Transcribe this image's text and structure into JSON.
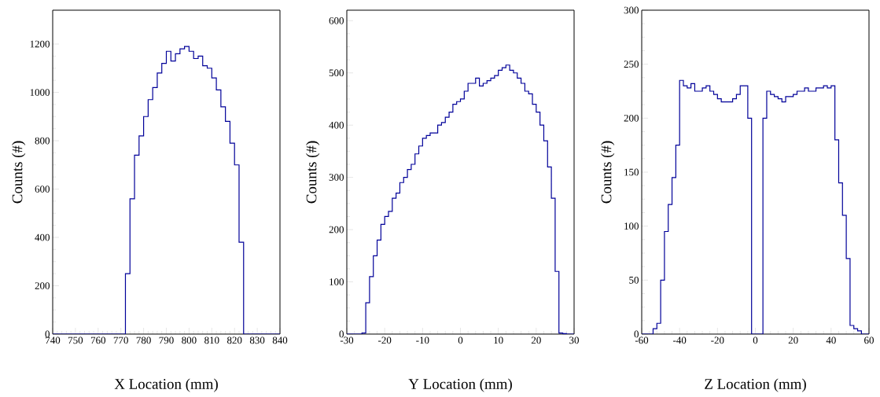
{
  "chart_data": [
    {
      "type": "histogram",
      "xlabel": "X Location (mm)",
      "ylabel": "Counts (#)",
      "color": "#000099",
      "bins": [
        740,
        742,
        744,
        746,
        748,
        750,
        752,
        754,
        756,
        758,
        760,
        762,
        764,
        766,
        768,
        770,
        772,
        774,
        776,
        778,
        780,
        782,
        784,
        786,
        788,
        790,
        792,
        794,
        796,
        798,
        800,
        802,
        804,
        806,
        808,
        810,
        812,
        814,
        816,
        818,
        820,
        822,
        824,
        826,
        828,
        830,
        832,
        834,
        836,
        838,
        840
      ],
      "values": [
        0,
        0,
        0,
        0,
        0,
        0,
        0,
        0,
        0,
        0,
        0,
        0,
        0,
        0,
        0,
        0,
        250,
        560,
        740,
        820,
        900,
        970,
        1020,
        1080,
        1120,
        1170,
        1130,
        1160,
        1180,
        1190,
        1170,
        1140,
        1150,
        1110,
        1100,
        1060,
        1010,
        940,
        880,
        790,
        700,
        380,
        0,
        0,
        0,
        0,
        0,
        0,
        0,
        0
      ],
      "xlim": [
        740,
        840
      ],
      "ylim": [
        0,
        1340
      ],
      "xticks": [
        740,
        750,
        760,
        770,
        780,
        790,
        800,
        810,
        820,
        830,
        840
      ],
      "yticks": [
        0,
        200,
        400,
        600,
        800,
        1000,
        1200
      ]
    },
    {
      "type": "histogram",
      "xlabel": "Y Location (mm)",
      "ylabel": "Counts (#)",
      "color": "#000099",
      "bins": [
        -30,
        -29,
        -28,
        -27,
        -26,
        -25,
        -24,
        -23,
        -22,
        -21,
        -20,
        -19,
        -18,
        -17,
        -16,
        -15,
        -14,
        -13,
        -12,
        -11,
        -10,
        -9,
        -8,
        -7,
        -6,
        -5,
        -4,
        -3,
        -2,
        -1,
        0,
        1,
        2,
        3,
        4,
        5,
        6,
        7,
        8,
        9,
        10,
        11,
        12,
        13,
        14,
        15,
        16,
        17,
        18,
        19,
        20,
        21,
        22,
        23,
        24,
        25,
        26,
        27,
        28,
        29,
        30
      ],
      "values": [
        0,
        0,
        0,
        0,
        2,
        60,
        110,
        150,
        180,
        210,
        225,
        235,
        260,
        270,
        290,
        300,
        315,
        325,
        345,
        360,
        375,
        380,
        385,
        385,
        400,
        405,
        415,
        425,
        440,
        445,
        450,
        465,
        480,
        480,
        490,
        475,
        480,
        485,
        490,
        495,
        505,
        510,
        515,
        505,
        500,
        490,
        480,
        465,
        460,
        440,
        425,
        400,
        370,
        320,
        260,
        120,
        2,
        1,
        0,
        0
      ],
      "xlim": [
        -30,
        30
      ],
      "ylim": [
        0,
        620
      ],
      "xticks": [
        -30,
        -20,
        -10,
        0,
        10,
        20,
        30
      ],
      "yticks": [
        0,
        100,
        200,
        300,
        400,
        500,
        600
      ]
    },
    {
      "type": "histogram",
      "xlabel": "Z Location (mm)",
      "ylabel": "Counts (#)",
      "color": "#000099",
      "bins": [
        -60,
        -58,
        -56,
        -54,
        -52,
        -50,
        -48,
        -46,
        -44,
        -42,
        -40,
        -38,
        -36,
        -34,
        -32,
        -30,
        -28,
        -26,
        -24,
        -22,
        -20,
        -18,
        -16,
        -14,
        -12,
        -10,
        -8,
        -6,
        -4,
        -2,
        0,
        2,
        4,
        6,
        8,
        10,
        12,
        14,
        16,
        18,
        20,
        22,
        24,
        26,
        28,
        30,
        32,
        34,
        36,
        38,
        40,
        42,
        44,
        46,
        48,
        50,
        52,
        54,
        56,
        58,
        60
      ],
      "values": [
        0,
        0,
        0,
        5,
        10,
        50,
        95,
        120,
        145,
        175,
        235,
        230,
        228,
        232,
        225,
        225,
        228,
        230,
        225,
        222,
        218,
        215,
        215,
        215,
        218,
        222,
        230,
        230,
        200,
        0,
        0,
        0,
        200,
        225,
        222,
        220,
        218,
        215,
        220,
        220,
        222,
        225,
        225,
        228,
        225,
        225,
        228,
        228,
        230,
        228,
        230,
        180,
        140,
        110,
        70,
        8,
        5,
        3,
        0,
        0
      ],
      "xlim": [
        -60,
        60
      ],
      "ylim": [
        0,
        300
      ],
      "xticks": [
        -60,
        -40,
        -20,
        0,
        20,
        40,
        60
      ],
      "yticks": [
        0,
        50,
        100,
        150,
        200,
        250,
        300
      ]
    }
  ]
}
